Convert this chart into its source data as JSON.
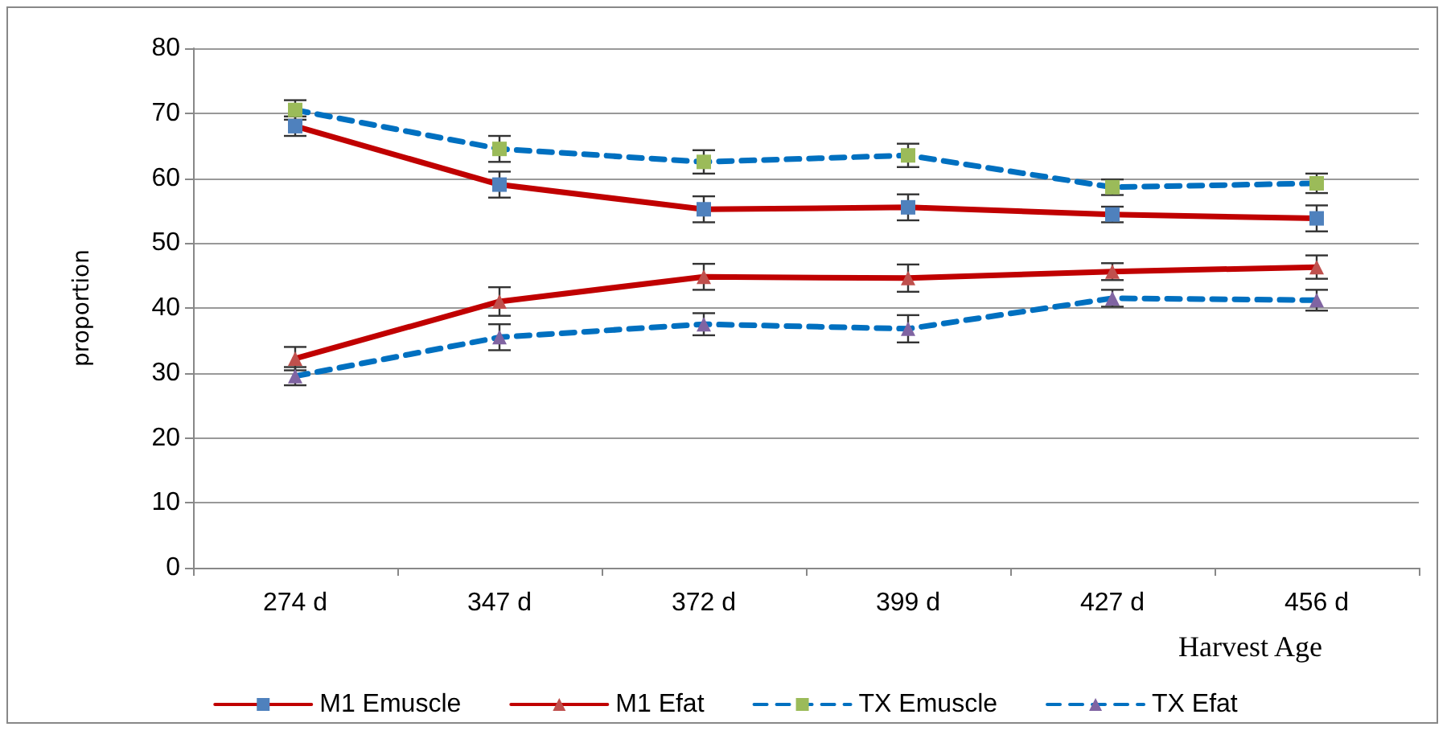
{
  "chart_data": {
    "type": "line",
    "xlabel": "Harvest Age",
    "ylabel": "proportion",
    "categories": [
      "274 d",
      "347 d",
      "372 d",
      "399 d",
      "427 d",
      "456 d"
    ],
    "ylim": [
      0,
      80
    ],
    "yticks": [
      0,
      10,
      20,
      30,
      40,
      50,
      60,
      70,
      80
    ],
    "grid": "y",
    "legend": "bottom",
    "series": [
      {
        "name": "M1 Emuscle",
        "color": "#c00000",
        "colors": [
          "#4f81bd",
          "#4f81bd",
          "#4f81bd",
          "#4f81bd",
          "#4f81bd",
          "#4f81bd"
        ],
        "marker": "square",
        "line_style": "solid",
        "values": [
          68,
          59,
          55.2,
          55.5,
          54.4,
          53.8
        ],
        "errors": [
          1.5,
          2,
          2,
          2,
          1.2,
          2
        ]
      },
      {
        "name": "M1 Efat",
        "color": "#c00000",
        "colors": [
          "#c0504d",
          "#c0504d",
          "#c0504d",
          "#c0504d",
          "#c0504d",
          "#c0504d"
        ],
        "marker": "triangle",
        "line_style": "solid",
        "values": [
          32.2,
          41,
          44.8,
          44.6,
          45.6,
          46.3
        ],
        "errors": [
          1.8,
          2.2,
          2,
          2.1,
          1.3,
          1.8
        ]
      },
      {
        "name": "TX Emuscle",
        "color": "#0070c0",
        "colors": [
          "#9bbb59",
          "#9bbb59",
          "#9bbb59",
          "#9bbb59",
          "#9bbb59",
          "#9bbb59"
        ],
        "marker": "square",
        "line_style": "dashed",
        "values": [
          70.5,
          64.5,
          62.5,
          63.5,
          58.6,
          59.2
        ],
        "errors": [
          1.5,
          2,
          1.8,
          1.8,
          1.2,
          1.5
        ]
      },
      {
        "name": "TX Efat",
        "color": "#0070c0",
        "colors": [
          "#8064a2",
          "#8064a2",
          "#8064a2",
          "#8064a2",
          "#8064a2",
          "#8064a2"
        ],
        "marker": "triangle",
        "line_style": "dashed",
        "values": [
          29.5,
          35.5,
          37.5,
          36.8,
          41.5,
          41.2
        ],
        "errors": [
          1.4,
          2,
          1.7,
          2.1,
          1.3,
          1.6
        ]
      }
    ]
  }
}
